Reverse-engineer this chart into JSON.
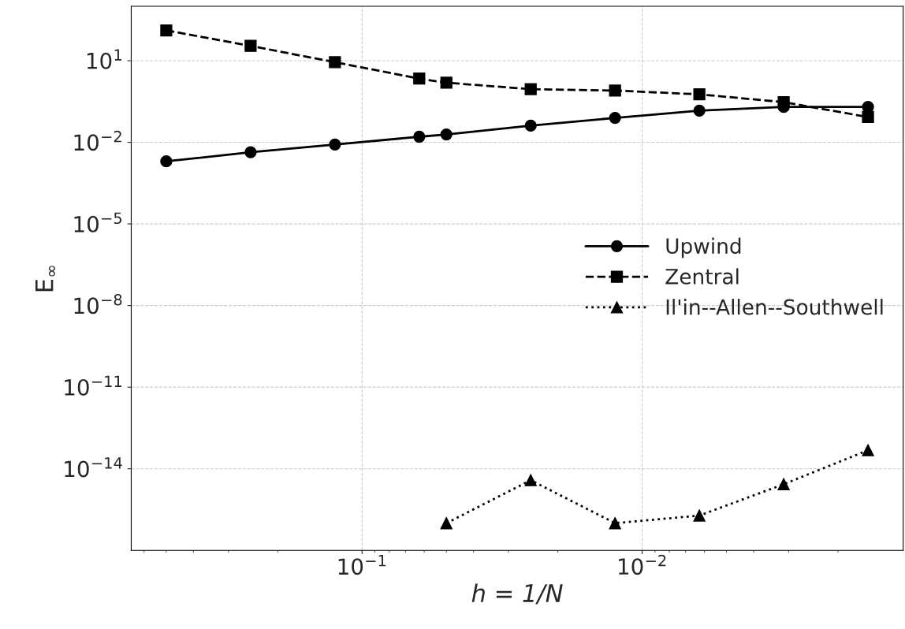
{
  "chart_data": {
    "type": "line",
    "xlabel": "h = 1/N",
    "ylabel": "E$_{∞}$",
    "log": "xy",
    "x": [
      0.5,
      0.25,
      0.125,
      0.0625,
      0.05,
      0.025,
      0.0125,
      0.00625,
      0.003125,
      0.0015625
    ],
    "xlim": [
      0.667,
      0.00117
    ],
    "xticks": [
      {
        "value": 0.1,
        "label": "10$^{−1}$"
      },
      {
        "value": 0.01,
        "label": "10$^{−2}$"
      }
    ],
    "ylim": [
      1e-17,
      1000
    ],
    "yticks": [
      {
        "value": 10,
        "label": "10$^{1}$"
      },
      {
        "value": 0.01,
        "label": "10$^{−2}$"
      },
      {
        "value": 1e-05,
        "label": "10$^{−5}$"
      },
      {
        "value": 1e-08,
        "label": "10$^{−8}$"
      },
      {
        "value": 1e-11,
        "label": "10$^{−11}$"
      },
      {
        "value": 1e-14,
        "label": "10$^{−14}$"
      }
    ],
    "series": [
      {
        "name": "Upwind",
        "color": "#000000",
        "marker": "circle",
        "line_style": "solid",
        "values": [
          0.002,
          0.0043,
          0.0083,
          0.016,
          0.0195,
          0.041,
          0.079,
          0.145,
          0.2,
          0.2
        ]
      },
      {
        "name": "Zentral",
        "color": "#000000",
        "marker": "square",
        "line_style": "dashed",
        "values": [
          130,
          35,
          8.8,
          2.2,
          1.55,
          0.9,
          0.8,
          0.58,
          0.3,
          0.085
        ]
      },
      {
        "name": "Il'in--Allen--Southwell",
        "color": "#000000",
        "marker": "triangle",
        "line_style": "dotted",
        "values": [
          null,
          null,
          null,
          null,
          1e-16,
          3.8e-15,
          1e-16,
          1.9e-16,
          2.7e-15,
          4.8e-14
        ]
      }
    ],
    "grid": true,
    "legend": "right"
  }
}
